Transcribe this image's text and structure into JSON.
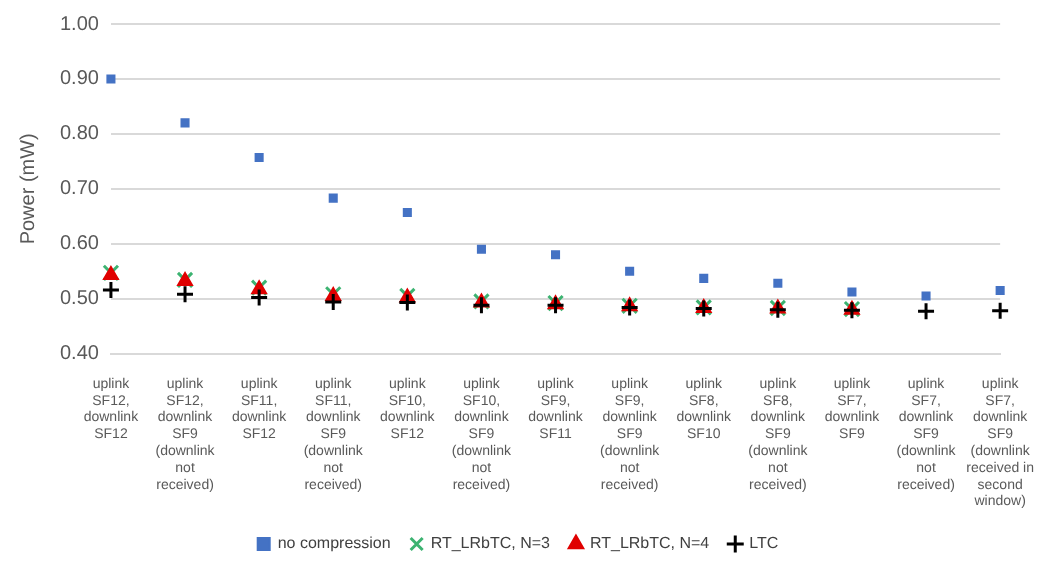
{
  "chart_data": {
    "type": "scatter",
    "ylabel": "Power (mW)",
    "categories": [
      "uplink SF12, downlink SF12",
      "uplink SF12, downlink SF9 (downlink not received)",
      "uplink SF11, downlink SF12",
      "uplink SF11, downlink SF9 (downlink not received)",
      "uplink SF10, downlink SF12",
      "uplink SF10, downlink SF9 (downlink not received)",
      "uplink SF9, downlink SF11",
      "uplink SF9, downlink SF9 (downlink not received)",
      "uplink SF8, downlink SF10",
      "uplink SF8, downlink SF9 (downlink not received)",
      "uplink SF7, downlink SF9",
      "uplink SF7, downlink SF9 (downlink not received)",
      "uplink SF7, downlink SF9 (downlink received in second window)"
    ],
    "series": [
      {
        "name": "no compression",
        "color": "#4472c4",
        "marker": "square",
        "values": [
          0.9,
          0.82,
          0.757,
          0.683,
          0.657,
          0.59,
          0.58,
          0.55,
          0.537,
          0.528,
          0.512,
          0.505,
          0.515
        ]
      },
      {
        "name": "RT_LRbTC, N=3",
        "color": "#3cb371",
        "marker": "cross",
        "values": [
          0.547,
          0.534,
          0.52,
          0.508,
          0.505,
          0.495,
          0.492,
          0.487,
          0.484,
          0.483,
          0.481,
          null,
          null
        ]
      },
      {
        "name": "RT_LRbTC, N=4",
        "color": "#e00000",
        "marker": "triangle",
        "values": [
          0.543,
          0.532,
          0.517,
          0.505,
          0.502,
          0.493,
          0.49,
          0.486,
          0.483,
          0.482,
          0.48,
          null,
          null
        ]
      },
      {
        "name": "LTC",
        "color": "#000000",
        "marker": "plus",
        "values": [
          0.516,
          0.508,
          0.502,
          0.494,
          0.493,
          0.488,
          0.488,
          0.484,
          0.482,
          0.48,
          0.479,
          0.477,
          0.478
        ]
      }
    ],
    "ylim": [
      0.4,
      1.0
    ],
    "yticks": [
      {
        "value": 0.4,
        "label": "0.40"
      },
      {
        "value": 0.5,
        "label": "0.50"
      },
      {
        "value": 0.6,
        "label": "0.60"
      },
      {
        "value": 0.7,
        "label": "0.70"
      },
      {
        "value": 0.8,
        "label": "0.80"
      },
      {
        "value": 0.9,
        "label": "0.90"
      },
      {
        "value": 1.0,
        "label": "1.00"
      }
    ],
    "grid": "y",
    "legend": "bottom"
  }
}
